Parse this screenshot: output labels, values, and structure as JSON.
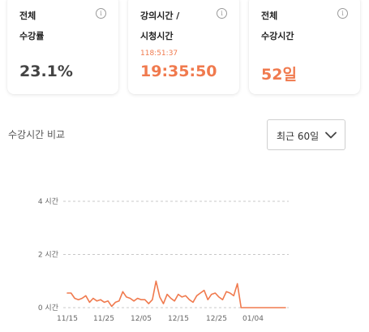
{
  "stats": [
    {
      "line1": "전체",
      "line2": "수강률",
      "subvalue": "",
      "value": "23.1%"
    },
    {
      "line1": "강의시간 /",
      "line2": "시청시간",
      "subvalue": "118:51:37",
      "value": "19:35:50"
    },
    {
      "line1": "전체",
      "line2": "수강시간",
      "subvalue": "",
      "value": "52일"
    }
  ],
  "info_icon": "info-icon",
  "section": {
    "title": "수강시간 비교",
    "dropdown": {
      "selected": "최근 60일",
      "icon": "chevron-down-icon"
    }
  },
  "colors": {
    "accent": "#f07a4e",
    "gridline": "#c8c8c8",
    "text": "#333333"
  },
  "chart_data": {
    "type": "line",
    "title": "",
    "xlabel": "",
    "ylabel": "",
    "y_tick_labels": [
      "0 시간",
      "2 시간",
      "4 시간"
    ],
    "y_ticks": [
      0,
      2,
      4
    ],
    "ylim": [
      0,
      4
    ],
    "x_tick_labels": [
      "11/15",
      "11/25",
      "12/05",
      "12/15",
      "12/25",
      "01/04"
    ],
    "grid": true,
    "series": [
      {
        "color": "#f07a4e",
        "values": [
          0.55,
          0.55,
          0.35,
          0.3,
          0.35,
          0.45,
          0.2,
          0.35,
          0.25,
          0.3,
          0.2,
          0.25,
          0.05,
          0.2,
          0.25,
          0.6,
          0.4,
          0.35,
          0.25,
          0.35,
          0.3,
          0.3,
          0.15,
          0.3,
          1.0,
          0.4,
          0.15,
          0.5,
          0.35,
          0.25,
          0.5,
          0.4,
          0.45,
          0.3,
          0.2,
          0.45,
          0.55,
          0.65,
          0.3,
          0.5,
          0.55,
          0.4,
          0.3,
          0.6,
          0.55,
          0.45,
          0.9,
          0.0,
          0.0,
          0.0,
          0.0,
          0.0,
          0.0,
          0.0,
          0.0,
          0.0,
          0.0,
          0.0,
          0.0,
          0.0
        ]
      }
    ]
  }
}
